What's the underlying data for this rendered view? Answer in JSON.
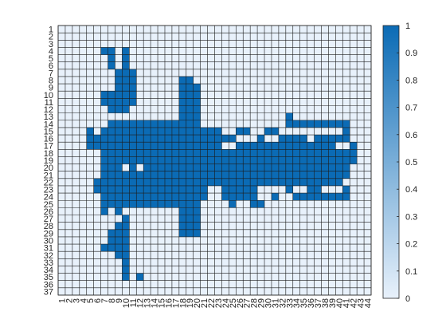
{
  "chart_data": {
    "type": "heatmap",
    "title": "",
    "xlabel": "",
    "ylabel": "",
    "x_ticks": [
      "1",
      "2",
      "3",
      "4",
      "5",
      "6",
      "7",
      "8",
      "9",
      "10",
      "11",
      "12",
      "13",
      "14",
      "15",
      "16",
      "17",
      "18",
      "19",
      "20",
      "21",
      "22",
      "23",
      "24",
      "25",
      "26",
      "27",
      "28",
      "29",
      "30",
      "31",
      "32",
      "33",
      "34",
      "35",
      "36",
      "37",
      "38",
      "39",
      "40",
      "41",
      "42",
      "43",
      "44"
    ],
    "y_ticks": [
      "1",
      "2",
      "3",
      "4",
      "5",
      "6",
      "7",
      "8",
      "9",
      "10",
      "11",
      "12",
      "13",
      "14",
      "15",
      "16",
      "17",
      "18",
      "19",
      "20",
      "21",
      "22",
      "23",
      "24",
      "25",
      "26",
      "27",
      "28",
      "29",
      "30",
      "31",
      "32",
      "33",
      "34",
      "35",
      "36",
      "37"
    ],
    "colorbar": {
      "range": [
        0,
        1
      ],
      "ticks": [
        "0",
        "0.1",
        "0.2",
        "0.3",
        "0.4",
        "0.5",
        "0.6",
        "0.7",
        "0.8",
        "0.9",
        "1"
      ],
      "low_color": "#e8f1fb",
      "high_color": "#0b6bb5"
    },
    "grid_color": "#1a1a1a",
    "value_ranges_description": "rows list [start_col, end_col] runs (1-based, inclusive) where value = 1; all other cells = 0",
    "rows": {
      "1": [],
      "2": [],
      "3": [],
      "4": [
        [
          7,
          8
        ],
        [
          10,
          10
        ]
      ],
      "5": [
        [
          8,
          8
        ],
        [
          10,
          10
        ]
      ],
      "6": [
        [
          8,
          8
        ],
        [
          10,
          10
        ]
      ],
      "7": [
        [
          9,
          11
        ]
      ],
      "8": [
        [
          9,
          11
        ],
        [
          18,
          19
        ]
      ],
      "9": [
        [
          9,
          11
        ],
        [
          18,
          20
        ]
      ],
      "10": [
        [
          7,
          11
        ],
        [
          18,
          20
        ]
      ],
      "11": [
        [
          7,
          11
        ],
        [
          18,
          20
        ]
      ],
      "12": [
        [
          8,
          10
        ],
        [
          18,
          20
        ]
      ],
      "13": [
        [
          18,
          20
        ],
        [
          33,
          33
        ]
      ],
      "14": [
        [
          8,
          20
        ],
        [
          33,
          41
        ]
      ],
      "15": [
        [
          5,
          5
        ],
        [
          7,
          23
        ],
        [
          26,
          27
        ],
        [
          30,
          31
        ],
        [
          41,
          41
        ]
      ],
      "16": [
        [
          5,
          25
        ],
        [
          29,
          29
        ],
        [
          32,
          35
        ],
        [
          37,
          41
        ]
      ],
      "17": [
        [
          5,
          23
        ],
        [
          26,
          39
        ],
        [
          42,
          42
        ]
      ],
      "18": [
        [
          7,
          42
        ]
      ],
      "19": [
        [
          7,
          42
        ]
      ],
      "20": [
        [
          7,
          9
        ],
        [
          11,
          11
        ],
        [
          13,
          41
        ]
      ],
      "21": [
        [
          7,
          41
        ]
      ],
      "22": [
        [
          6,
          40
        ]
      ],
      "23": [
        [
          6,
          21
        ],
        [
          24,
          28
        ],
        [
          33,
          33
        ],
        [
          36,
          37
        ],
        [
          41,
          41
        ]
      ],
      "24": [
        [
          7,
          21
        ],
        [
          24,
          28
        ],
        [
          31,
          31
        ],
        [
          34,
          41
        ]
      ],
      "25": [
        [
          7,
          20
        ],
        [
          25,
          25
        ],
        [
          28,
          29
        ]
      ],
      "26": [
        [
          7,
          7
        ],
        [
          9,
          9
        ],
        [
          18,
          20
        ]
      ],
      "27": [
        [
          10,
          10
        ],
        [
          18,
          20
        ]
      ],
      "28": [
        [
          9,
          10
        ],
        [
          18,
          20
        ]
      ],
      "29": [
        [
          8,
          10
        ],
        [
          18,
          20
        ]
      ],
      "30": [
        [
          8,
          10
        ]
      ],
      "31": [
        [
          7,
          10
        ]
      ],
      "32": [
        [
          9,
          10
        ]
      ],
      "33": [
        [
          10,
          10
        ]
      ],
      "34": [
        [
          10,
          10
        ]
      ],
      "35": [
        [
          10,
          10
        ],
        [
          12,
          12
        ]
      ],
      "36": [],
      "37": []
    }
  }
}
